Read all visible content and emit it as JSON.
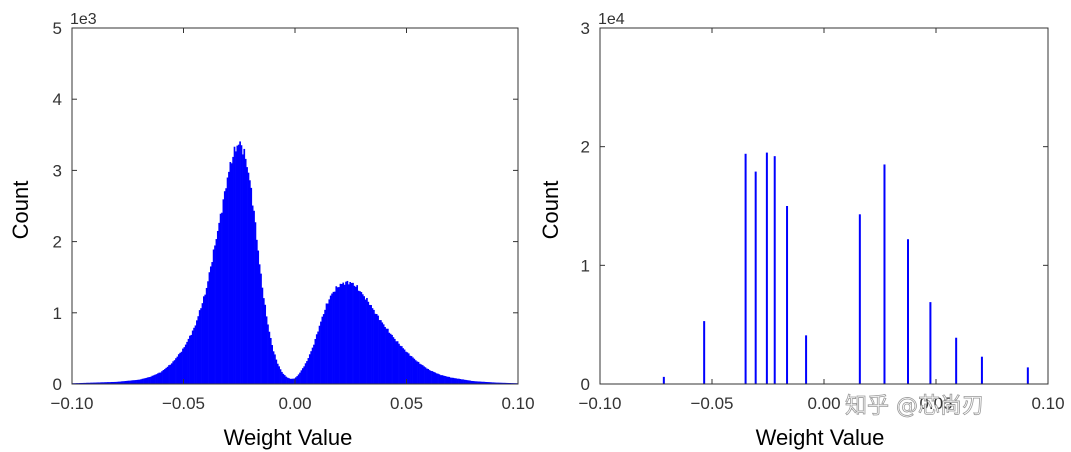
{
  "watermark": "知乎 @芯尚刃",
  "colors": {
    "bar": "#0000ff",
    "axis": "#333333"
  },
  "chart_data": [
    {
      "type": "histogram",
      "title": "",
      "xlabel": "Weight Value",
      "ylabel": "Count",
      "y_scale_label": "1e3",
      "xlim": [
        -0.1,
        0.1
      ],
      "ylim": [
        0,
        5
      ],
      "x_ticks": [
        "−0.10",
        "−0.05",
        "0.00",
        "0.05",
        "0.10"
      ],
      "y_ticks": [
        "0",
        "1",
        "2",
        "3",
        "4",
        "5"
      ],
      "grid": false,
      "x": [
        -0.1,
        -0.09,
        -0.08,
        -0.07,
        -0.065,
        -0.06,
        -0.055,
        -0.05,
        -0.045,
        -0.04,
        -0.035,
        -0.032,
        -0.03,
        -0.028,
        -0.026,
        -0.025,
        -0.024,
        -0.022,
        -0.02,
        -0.018,
        -0.016,
        -0.014,
        -0.012,
        -0.01,
        -0.008,
        -0.006,
        -0.004,
        -0.002,
        0.0,
        0.002,
        0.005,
        0.008,
        0.01,
        0.012,
        0.014,
        0.016,
        0.018,
        0.02,
        0.022,
        0.024,
        0.026,
        0.028,
        0.03,
        0.033,
        0.036,
        0.04,
        0.045,
        0.05,
        0.055,
        0.06,
        0.065,
        0.07,
        0.08,
        0.09,
        0.1
      ],
      "y": [
        0.01,
        0.02,
        0.03,
        0.06,
        0.1,
        0.17,
        0.3,
        0.5,
        0.8,
        1.3,
        2.1,
        2.6,
        2.95,
        3.2,
        3.35,
        3.38,
        3.35,
        3.15,
        2.8,
        2.3,
        1.7,
        1.2,
        0.8,
        0.5,
        0.3,
        0.17,
        0.1,
        0.07,
        0.08,
        0.15,
        0.3,
        0.52,
        0.72,
        0.92,
        1.1,
        1.24,
        1.33,
        1.39,
        1.42,
        1.43,
        1.41,
        1.35,
        1.27,
        1.15,
        1.0,
        0.82,
        0.62,
        0.45,
        0.31,
        0.2,
        0.13,
        0.09,
        0.04,
        0.02,
        0.01
      ]
    },
    {
      "type": "histogram",
      "title": "",
      "xlabel": "Weight Value",
      "ylabel": "Count",
      "y_scale_label": "1e4",
      "xlim": [
        -0.1,
        0.1
      ],
      "ylim": [
        0,
        3
      ],
      "x_ticks": [
        "−0.10",
        "−0.05",
        "0.00",
        "0.05",
        "0.10"
      ],
      "y_ticks": [
        "0",
        "1",
        "2",
        "3"
      ],
      "grid": false,
      "x": [
        -0.0715,
        -0.0535,
        -0.035,
        -0.0305,
        -0.0255,
        -0.022,
        -0.0165,
        -0.008,
        0.016,
        0.027,
        0.0375,
        0.0475,
        0.059,
        0.0705,
        0.091
      ],
      "y": [
        0.06,
        0.53,
        1.94,
        1.79,
        1.95,
        1.92,
        1.5,
        0.41,
        1.43,
        1.85,
        1.22,
        0.69,
        0.39,
        0.23,
        0.14
      ]
    }
  ]
}
